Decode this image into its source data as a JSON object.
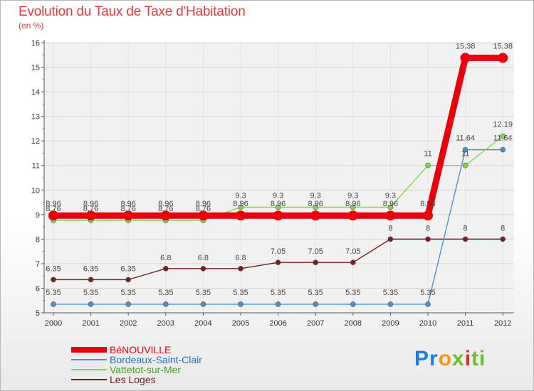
{
  "chart_data": {
    "type": "line",
    "title": "Evolution du Taux de Taxe d'Habitation",
    "subtitle": "(en %)",
    "xlabel": "",
    "ylabel": "(en %)",
    "categories": [
      "2000",
      "2001",
      "2002",
      "2003",
      "2004",
      "2005",
      "2006",
      "2007",
      "2008",
      "2009",
      "2010",
      "2011",
      "2012"
    ],
    "ylim": [
      5,
      16
    ],
    "yticks": [
      "5",
      "6",
      "7",
      "8",
      "9",
      "10",
      "11",
      "12",
      "13",
      "14",
      "15",
      "16"
    ],
    "series": [
      {
        "name": "BéNOUVILLE",
        "color": "#e8000b",
        "values": [
          8.96,
          8.96,
          8.96,
          8.96,
          8.96,
          8.96,
          8.96,
          8.96,
          8.96,
          8.96,
          8.96,
          15.38,
          15.38
        ],
        "labels": [
          "8.96",
          "8.96",
          "8.96",
          "8.96",
          "8.96",
          "8.96",
          "8.96",
          "8.96",
          "8.96",
          "8.96",
          "8.96",
          "15.38",
          "15.38"
        ]
      },
      {
        "name": "Bordeaux-Saint-Clair",
        "color": "#4f90c8",
        "values": [
          5.35,
          5.35,
          5.35,
          5.35,
          5.35,
          5.35,
          5.35,
          5.35,
          5.35,
          5.35,
          5.35,
          11.64,
          11.64
        ],
        "labels": [
          "5.35",
          "5.35",
          "5.35",
          "5.35",
          "5.35",
          "5.35",
          "5.35",
          "5.35",
          "5.35",
          "5.35",
          "5.35",
          "11.64",
          "11.64"
        ]
      },
      {
        "name": "Vattetot-sur-Mer",
        "color": "#7fd64a",
        "values": [
          8.76,
          8.76,
          8.76,
          8.76,
          8.76,
          9.3,
          9.3,
          9.3,
          9.3,
          9.3,
          11,
          11,
          12.19
        ],
        "labels": [
          "8.76",
          "8.76",
          "8.76",
          "8.76",
          "8.76",
          "9.3",
          "9.3",
          "9.3",
          "9.3",
          "9.3",
          "11",
          "11",
          "12.19"
        ]
      },
      {
        "name": "Les Loges",
        "color": "#7a1e1e",
        "values": [
          6.35,
          6.35,
          6.35,
          6.8,
          6.8,
          6.8,
          7.05,
          7.05,
          7.05,
          8,
          8,
          8,
          8
        ],
        "labels": [
          "6.35",
          "6.35",
          "6.35",
          "6.8",
          "6.8",
          "6.8",
          "7.05",
          "7.05",
          "7.05",
          "8",
          "8",
          "8",
          "8"
        ]
      }
    ],
    "legend_position": "bottom-left"
  },
  "logo": {
    "letters": [
      "Pr",
      "o",
      "x",
      "i",
      "ti"
    ]
  }
}
